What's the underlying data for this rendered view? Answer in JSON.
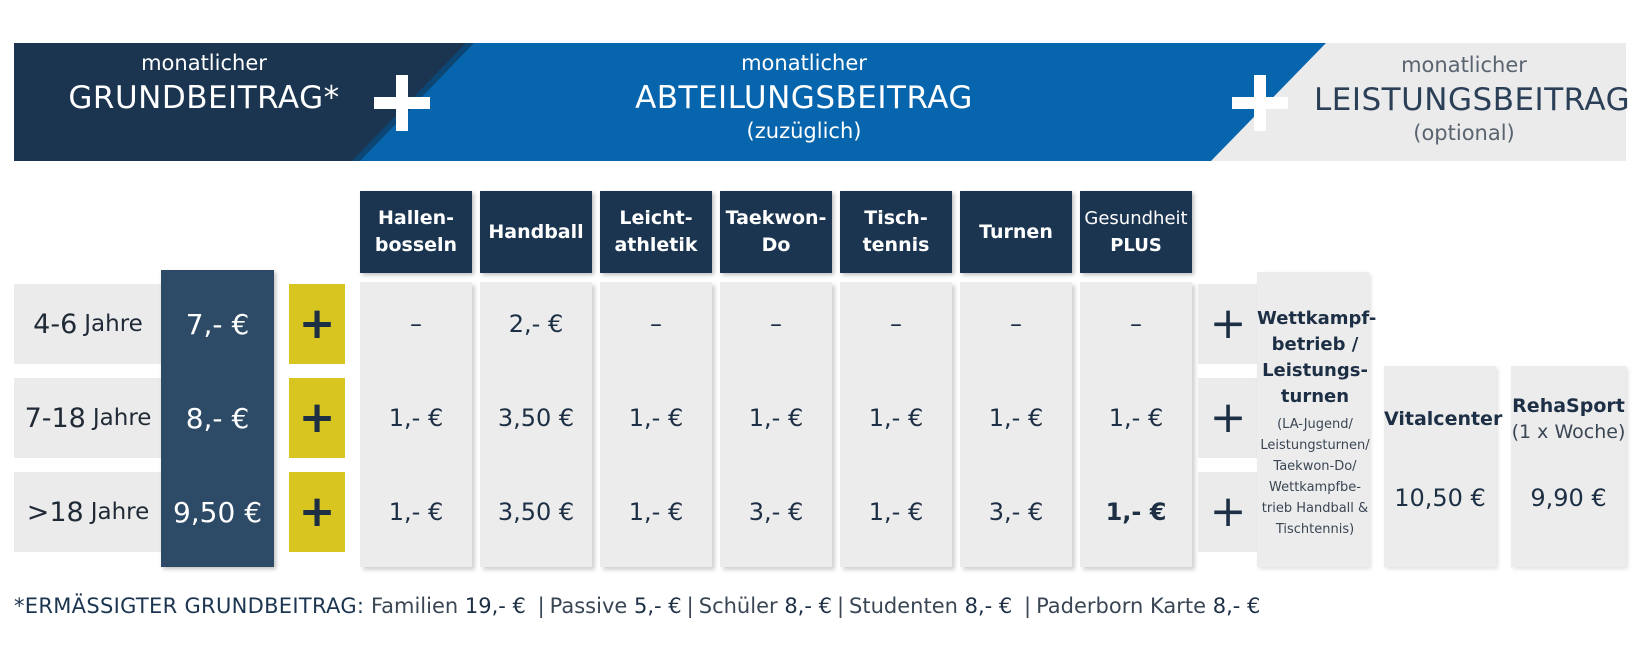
{
  "banner": {
    "grund": {
      "small": "monatlicher",
      "big": "GRUNDBEITRAG*"
    },
    "abteilung": {
      "small": "monatlicher",
      "big": "ABTEILUNGSBEITRAG",
      "note": "(zuzüglich)"
    },
    "leistung": {
      "small": "monatlicher",
      "big": "LEISTUNGSBEITRAG",
      "note": "(optional)"
    },
    "plus": "+",
    "colors": {
      "navy": "#1b3550",
      "blue": "#0765ad",
      "light": "#ebebeb",
      "yellow": "#d9c51f"
    }
  },
  "departments": [
    {
      "line1": "Hallen-",
      "line2": "bosseln"
    },
    {
      "line1": "Handball",
      "line2": ""
    },
    {
      "line1": "Leicht-",
      "line2": "athletik"
    },
    {
      "line1": "Taekwon-",
      "line2": "Do"
    },
    {
      "line1": "Tisch-",
      "line2": "tennis"
    },
    {
      "line1": "Turnen",
      "line2": ""
    },
    {
      "line1": "Gesundheit",
      "line2": "PLUS"
    }
  ],
  "rows": [
    {
      "age_num": "4-6",
      "age_unit": "Jahre",
      "grund": "7,- €",
      "values": [
        "–",
        "2,- €",
        "–",
        "–",
        "–",
        "–",
        "–"
      ]
    },
    {
      "age_num": "7-18",
      "age_unit": "Jahre",
      "grund": "8,- €",
      "values": [
        "1,- €",
        "3,50 €",
        "1,- €",
        "1,- €",
        "1,- €",
        "1,- €",
        "1,- €"
      ]
    },
    {
      "age_num": ">18",
      "age_unit": "Jahre",
      "grund": "9,50 €",
      "values": [
        "1,- €",
        "3,50 €",
        "1,- €",
        "3,- €",
        "1,- €",
        "3,- €",
        "1,- €"
      ]
    }
  ],
  "plus_sign": "+",
  "optional": {
    "wettkampf": {
      "title": [
        "Wettkampf-",
        "betrieb /",
        "Leistungs-",
        "turnen"
      ],
      "sub": [
        "(LA-Jugend/",
        "Leistungsturnen/",
        "Taekwon-Do/",
        "Wettkampfbe-",
        "trieb Handball &",
        "Tischtennis)"
      ]
    },
    "vitalcenter": {
      "title": "Vitalcenter",
      "value": "10,50 €"
    },
    "rehasport": {
      "title": "RehaSport",
      "sub": "(1 x Woche)",
      "value": "9,90 €"
    }
  },
  "footnote": {
    "head": "*ERMÄSSIGTER GRUNDBEITRAG:",
    "items": [
      {
        "label": "Familien",
        "price": "19,- €"
      },
      {
        "label": "Passive",
        "price": "5,- €"
      },
      {
        "label": "Schüler",
        "price": "8,- €"
      },
      {
        "label": "Studenten",
        "price": "8,- €"
      },
      {
        "label": "Paderborn Karte",
        "price": "8,- €"
      }
    ],
    "separator": "|"
  }
}
